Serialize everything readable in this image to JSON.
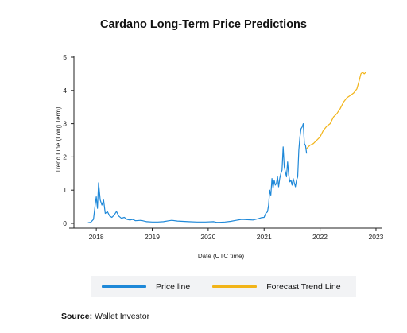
{
  "chart_data": {
    "type": "line",
    "title": "Cardano Long-Term Price Predictions",
    "xlabel": "Date (UTC time)",
    "ylabel": "Trend Line (Long Term)",
    "xlim": [
      2017.6,
      2023.1
    ],
    "ylim": [
      0,
      5
    ],
    "x_ticks": [
      2018,
      2019,
      2020,
      2021,
      2022,
      2023
    ],
    "x_tick_labels": [
      "2018",
      "2019",
      "2020",
      "2021",
      "2022",
      "2023"
    ],
    "y_ticks": [
      0,
      1,
      2,
      3,
      4,
      5
    ],
    "y_tick_labels": [
      "0",
      "1",
      "2",
      "3",
      "4",
      "5"
    ],
    "grid": false,
    "legend_position": "bottom",
    "series": [
      {
        "name": "Price line",
        "color": "#1e88d8",
        "points": [
          [
            2017.85,
            0.02
          ],
          [
            2017.9,
            0.03
          ],
          [
            2017.95,
            0.12
          ],
          [
            2017.98,
            0.55
          ],
          [
            2018.0,
            0.8
          ],
          [
            2018.02,
            0.45
          ],
          [
            2018.04,
            1.22
          ],
          [
            2018.07,
            0.7
          ],
          [
            2018.1,
            0.55
          ],
          [
            2018.13,
            0.7
          ],
          [
            2018.16,
            0.3
          ],
          [
            2018.2,
            0.35
          ],
          [
            2018.24,
            0.22
          ],
          [
            2018.28,
            0.18
          ],
          [
            2018.32,
            0.25
          ],
          [
            2018.36,
            0.36
          ],
          [
            2018.4,
            0.22
          ],
          [
            2018.45,
            0.15
          ],
          [
            2018.5,
            0.18
          ],
          [
            2018.55,
            0.12
          ],
          [
            2018.6,
            0.1
          ],
          [
            2018.65,
            0.12
          ],
          [
            2018.7,
            0.08
          ],
          [
            2018.8,
            0.09
          ],
          [
            2018.9,
            0.05
          ],
          [
            2019.0,
            0.04
          ],
          [
            2019.1,
            0.04
          ],
          [
            2019.2,
            0.05
          ],
          [
            2019.3,
            0.08
          ],
          [
            2019.35,
            0.09
          ],
          [
            2019.45,
            0.07
          ],
          [
            2019.55,
            0.06
          ],
          [
            2019.65,
            0.05
          ],
          [
            2019.8,
            0.04
          ],
          [
            2019.95,
            0.04
          ],
          [
            2020.1,
            0.05
          ],
          [
            2020.15,
            0.03
          ],
          [
            2020.2,
            0.03
          ],
          [
            2020.3,
            0.04
          ],
          [
            2020.4,
            0.06
          ],
          [
            2020.5,
            0.09
          ],
          [
            2020.6,
            0.12
          ],
          [
            2020.7,
            0.11
          ],
          [
            2020.8,
            0.1
          ],
          [
            2020.9,
            0.14
          ],
          [
            2020.95,
            0.17
          ],
          [
            2021.0,
            0.18
          ],
          [
            2021.03,
            0.3
          ],
          [
            2021.06,
            0.35
          ],
          [
            2021.08,
            0.55
          ],
          [
            2021.1,
            1.0
          ],
          [
            2021.12,
            0.85
          ],
          [
            2021.14,
            1.35
          ],
          [
            2021.16,
            1.05
          ],
          [
            2021.18,
            1.3
          ],
          [
            2021.2,
            1.15
          ],
          [
            2021.22,
            1.2
          ],
          [
            2021.24,
            1.4
          ],
          [
            2021.26,
            1.1
          ],
          [
            2021.28,
            1.35
          ],
          [
            2021.3,
            1.5
          ],
          [
            2021.32,
            1.6
          ],
          [
            2021.34,
            2.3
          ],
          [
            2021.36,
            1.7
          ],
          [
            2021.38,
            1.55
          ],
          [
            2021.4,
            1.4
          ],
          [
            2021.42,
            1.85
          ],
          [
            2021.44,
            1.45
          ],
          [
            2021.46,
            1.25
          ],
          [
            2021.48,
            1.3
          ],
          [
            2021.5,
            1.15
          ],
          [
            2021.52,
            1.35
          ],
          [
            2021.54,
            1.22
          ],
          [
            2021.56,
            1.1
          ],
          [
            2021.58,
            1.3
          ],
          [
            2021.6,
            1.4
          ],
          [
            2021.62,
            2.2
          ],
          [
            2021.64,
            2.6
          ],
          [
            2021.66,
            2.85
          ],
          [
            2021.68,
            2.9
          ],
          [
            2021.7,
            3.0
          ],
          [
            2021.72,
            2.4
          ],
          [
            2021.74,
            2.35
          ],
          [
            2021.76,
            2.1
          ]
        ]
      },
      {
        "name": "Forecast Trend Line",
        "color": "#f2b418",
        "points": [
          [
            2021.76,
            2.25
          ],
          [
            2021.82,
            2.35
          ],
          [
            2021.88,
            2.4
          ],
          [
            2021.94,
            2.5
          ],
          [
            2022.0,
            2.6
          ],
          [
            2022.06,
            2.8
          ],
          [
            2022.12,
            2.92
          ],
          [
            2022.18,
            3.0
          ],
          [
            2022.24,
            3.2
          ],
          [
            2022.3,
            3.3
          ],
          [
            2022.36,
            3.45
          ],
          [
            2022.42,
            3.65
          ],
          [
            2022.48,
            3.78
          ],
          [
            2022.54,
            3.85
          ],
          [
            2022.6,
            3.92
          ],
          [
            2022.66,
            4.05
          ],
          [
            2022.7,
            4.3
          ],
          [
            2022.73,
            4.5
          ],
          [
            2022.76,
            4.55
          ],
          [
            2022.79,
            4.5
          ],
          [
            2022.82,
            4.55
          ]
        ]
      }
    ]
  },
  "legend": [
    {
      "label": "Price line",
      "color": "#1e88d8"
    },
    {
      "label": "Forecast Trend Line",
      "color": "#f2b418"
    }
  ],
  "source": {
    "label": "Source:",
    "text": "Wallet Investor"
  }
}
